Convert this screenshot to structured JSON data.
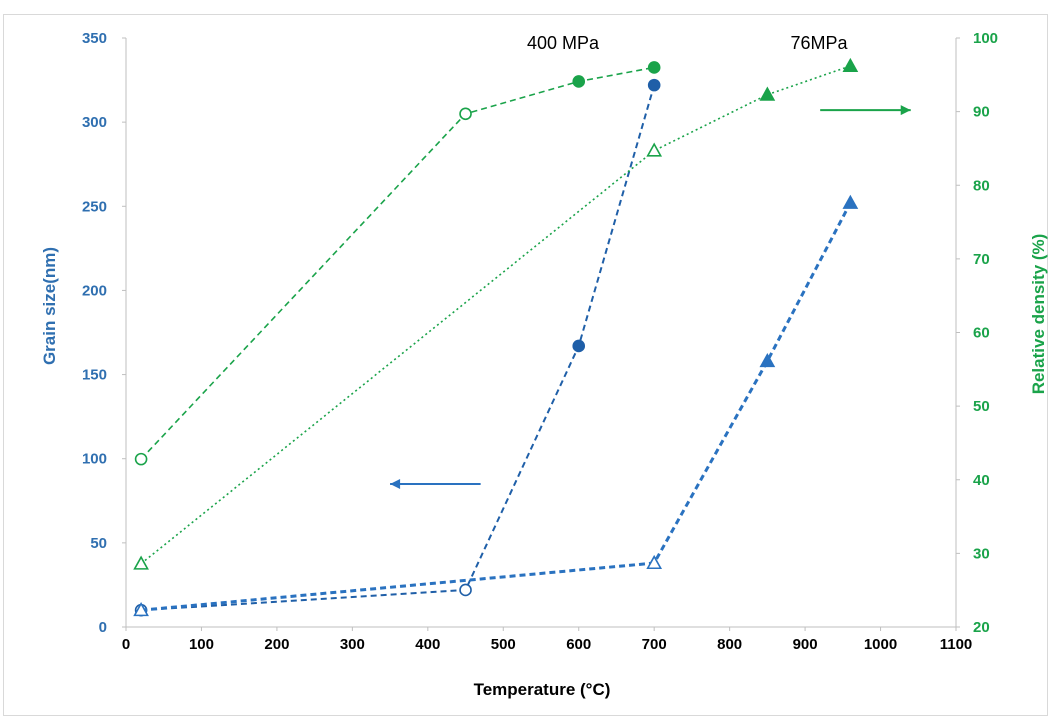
{
  "chart_data": {
    "type": "scatter",
    "xlabel": "Temperature (°C)",
    "ylabel_left": "Grain size(nm)",
    "ylabel_right": "Relative density (%)",
    "xlim": [
      0,
      1100
    ],
    "ylim_left": [
      0,
      350
    ],
    "ylim_right": [
      20,
      100
    ],
    "x_ticks": [
      0,
      100,
      200,
      300,
      400,
      500,
      600,
      700,
      800,
      900,
      1000,
      1100
    ],
    "y_left_ticks": [
      0,
      50,
      100,
      150,
      200,
      250,
      300,
      350
    ],
    "y_right_ticks": [
      20,
      30,
      40,
      50,
      60,
      70,
      80,
      90,
      100
    ],
    "grid": false,
    "annotations": [
      "400 MPa",
      "76MPa"
    ],
    "series": [
      {
        "axis": "left",
        "color": "#1f5fa8",
        "marker": "circle",
        "line": "dashed",
        "line_width": 2,
        "points": [
          {
            "x": 20,
            "y": 10,
            "filled": false
          },
          {
            "x": 450,
            "y": 22,
            "filled": false
          },
          {
            "x": 600,
            "y": 167,
            "filled": true
          },
          {
            "x": 700,
            "y": 322,
            "filled": true
          }
        ]
      },
      {
        "axis": "left",
        "color": "#2a72c0",
        "marker": "triangle",
        "line": "dashed",
        "line_width": 3,
        "points": [
          {
            "x": 20,
            "y": 10,
            "filled": false
          },
          {
            "x": 700,
            "y": 38,
            "filled": false
          },
          {
            "x": 850,
            "y": 158,
            "filled": true
          },
          {
            "x": 960,
            "y": 252,
            "filled": true
          }
        ]
      },
      {
        "axis": "right",
        "color": "#1aa34a",
        "marker": "circle",
        "line": "dashed",
        "line_width": 1.6,
        "points": [
          {
            "x": 20,
            "y": 42.8,
            "filled": false
          },
          {
            "x": 450,
            "y": 89.7,
            "filled": false
          },
          {
            "x": 600,
            "y": 94.1,
            "filled": true
          },
          {
            "x": 700,
            "y": 96,
            "filled": true
          }
        ]
      },
      {
        "axis": "right",
        "color": "#1aa34a",
        "marker": "triangle",
        "line": "dotted",
        "line_width": 1.6,
        "points": [
          {
            "x": 20,
            "y": 28.6,
            "filled": false
          },
          {
            "x": 700,
            "y": 84.7,
            "filled": false
          },
          {
            "x": 850,
            "y": 92.3,
            "filled": true
          },
          {
            "x": 960,
            "y": 96.2,
            "filled": true
          }
        ]
      }
    ],
    "axis_arrows": [
      {
        "color": "#2a72c0",
        "direction": "left",
        "x_from": 470,
        "x_to": 350,
        "y": 85,
        "axis": "left"
      },
      {
        "color": "#1aa34a",
        "direction": "right",
        "x_from": 920,
        "x_to": 1040,
        "y": 90.2,
        "axis": "right"
      }
    ]
  }
}
